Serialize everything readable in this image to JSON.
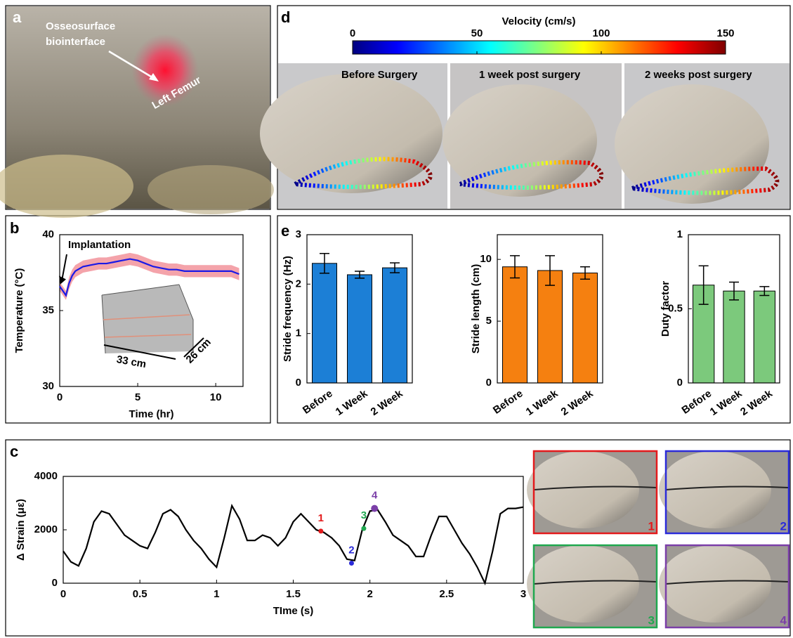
{
  "panel_labels": [
    "a",
    "b",
    "c",
    "d",
    "e"
  ],
  "photo_a": {
    "annotation_lines": [
      "Osseosurface",
      "biointerface"
    ],
    "target": "Left Femur"
  },
  "colorbar": {
    "title": "Velocity (cm/s)",
    "lim": [
      0,
      150
    ],
    "ticks": [
      0,
      50,
      100,
      150
    ]
  },
  "photo_d": {
    "captions": [
      "Before Surgery",
      "1 week post surgery",
      "2 weeks post surgery"
    ]
  },
  "chart_data": [
    {
      "type": "line",
      "xlabel": "Time (hr)",
      "ylabel": "Temperature (°C)",
      "annotation": "Implantation",
      "inset_labels": [
        "33 cm",
        "26 cm"
      ],
      "x": [
        0,
        0.2,
        0.4,
        0.6,
        0.8,
        1,
        1.5,
        2,
        2.5,
        3,
        3.5,
        4,
        4.5,
        5,
        5.5,
        6,
        6.5,
        7,
        7.5,
        8,
        8.5,
        9,
        9.5,
        10,
        10.5,
        11,
        11.5
      ],
      "values": [
        36.6,
        36.3,
        36.0,
        36.8,
        37.3,
        37.6,
        37.9,
        38.0,
        38.1,
        38.1,
        38.2,
        38.3,
        38.4,
        38.3,
        38.1,
        37.9,
        37.8,
        37.7,
        37.7,
        37.6,
        37.6,
        37.6,
        37.6,
        37.6,
        37.6,
        37.6,
        37.4
      ],
      "errors": [
        0.3,
        0.3,
        0.3,
        0.4,
        0.4,
        0.4,
        0.4,
        0.4,
        0.4,
        0.4,
        0.4,
        0.4,
        0.4,
        0.4,
        0.4,
        0.4,
        0.4,
        0.4,
        0.4,
        0.4,
        0.4,
        0.4,
        0.4,
        0.4,
        0.4,
        0.4,
        0.4
      ],
      "color": "#1a1ae6",
      "band_color": "#f4a3aa",
      "xlim": [
        0,
        11.75
      ],
      "ylim": [
        30,
        40
      ],
      "xticks": [
        0,
        5,
        10
      ],
      "yticks": [
        30,
        35,
        40
      ]
    },
    {
      "type": "line",
      "xlabel": "TIme (s)",
      "ylabel": "Δ Strain (με)",
      "x": [
        0,
        0.05,
        0.1,
        0.15,
        0.2,
        0.25,
        0.3,
        0.35,
        0.4,
        0.45,
        0.5,
        0.55,
        0.6,
        0.65,
        0.7,
        0.75,
        0.8,
        0.85,
        0.9,
        0.95,
        1,
        1.05,
        1.1,
        1.15,
        1.2,
        1.25,
        1.3,
        1.35,
        1.4,
        1.45,
        1.5,
        1.55,
        1.6,
        1.65,
        1.7,
        1.75,
        1.8,
        1.85,
        1.9,
        1.95,
        2,
        2.05,
        2.1,
        2.15,
        2.2,
        2.25,
        2.3,
        2.35,
        2.4,
        2.45,
        2.5,
        2.55,
        2.6,
        2.65,
        2.7,
        2.75,
        2.8,
        2.85,
        2.9,
        2.95,
        3
      ],
      "values": [
        1200,
        800,
        650,
        1300,
        2300,
        2700,
        2600,
        2200,
        1800,
        1600,
        1400,
        1300,
        1900,
        2600,
        2750,
        2500,
        2000,
        1600,
        1300,
        900,
        600,
        1700,
        2900,
        2400,
        1600,
        1600,
        1800,
        1700,
        1400,
        1700,
        2300,
        2600,
        2300,
        2000,
        1900,
        1700,
        1400,
        900,
        850,
        2000,
        2700,
        2750,
        2300,
        1800,
        1600,
        1400,
        1000,
        1000,
        1800,
        2500,
        2500,
        2000,
        1500,
        1100,
        600,
        0,
        1200,
        2600,
        2800,
        2800,
        2850
      ],
      "color": "#000000",
      "xlim": [
        0,
        3
      ],
      "ylim": [
        0,
        4000
      ],
      "xticks": [
        0,
        0.5,
        1,
        1.5,
        2,
        2.5,
        3
      ],
      "yticks": [
        0,
        2000,
        4000
      ],
      "points": [
        {
          "label": "1",
          "x": 1.68,
          "y": 1950,
          "color": "#e31a1c"
        },
        {
          "label": "2",
          "x": 1.88,
          "y": 750,
          "color": "#2b2bd9"
        },
        {
          "label": "3",
          "x": 1.96,
          "y": 2050,
          "color": "#1fa84f"
        },
        {
          "label": "4",
          "x": 2.03,
          "y": 2800,
          "color": "#7b3fa8"
        }
      ]
    },
    {
      "type": "bar",
      "ylabel": "Stride frequency (Hz)",
      "categories": [
        "Before",
        "1 Week",
        "2 Week"
      ],
      "values": [
        2.42,
        2.19,
        2.33
      ],
      "errors": [
        0.2,
        0.07,
        0.1
      ],
      "color": "#1c7fd6",
      "ylim": [
        0,
        3
      ],
      "yticks": [
        0,
        1,
        2,
        3
      ]
    },
    {
      "type": "bar",
      "ylabel": "Stride length (cm)",
      "categories": [
        "Before",
        "1 Week",
        "2 Week"
      ],
      "values": [
        9.4,
        9.1,
        8.9
      ],
      "errors": [
        0.9,
        1.2,
        0.5
      ],
      "color": "#f58010",
      "ylim": [
        0,
        12
      ],
      "yticks": [
        0,
        5,
        10
      ]
    },
    {
      "type": "bar",
      "ylabel": "Duty factor",
      "categories": [
        "Before",
        "1 Week",
        "2 Week"
      ],
      "values": [
        0.66,
        0.62,
        0.62
      ],
      "errors": [
        0.13,
        0.06,
        0.03
      ],
      "color": "#7cc97c",
      "ylim": [
        0,
        1
      ],
      "yticks": [
        0,
        0.5,
        1
      ]
    }
  ]
}
